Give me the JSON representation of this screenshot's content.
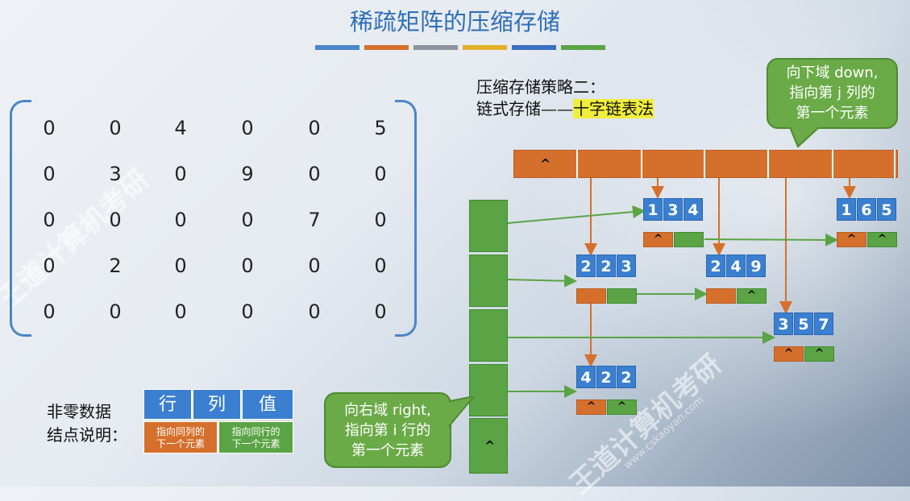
{
  "title": "稀疏矩阵的压缩存储",
  "color_bars": [
    "#4a86c8",
    "#d5702c",
    "#8c959e",
    "#e3b129",
    "#3a6fc0",
    "#5aa445"
  ],
  "matrix": {
    "rows": [
      [
        "0",
        "0",
        "4",
        "0",
        "0",
        "5"
      ],
      [
        "0",
        "3",
        "0",
        "9",
        "0",
        "0"
      ],
      [
        "0",
        "0",
        "0",
        "0",
        "7",
        "0"
      ],
      [
        "0",
        "2",
        "0",
        "0",
        "0",
        "0"
      ],
      [
        "0",
        "0",
        "0",
        "0",
        "0",
        "0"
      ]
    ]
  },
  "strategy": {
    "line1": "压缩存储策略二：",
    "line2_prefix": "链式存储——",
    "line2_highlight": "十字链表法"
  },
  "callout_down": {
    "line1": "向下域 down,",
    "line2": "指向第 j 列的",
    "line3": "第一个元素"
  },
  "callout_right": {
    "line1": "向右域 right,",
    "line2": "指向第 i 行的",
    "line3": "第一个元素"
  },
  "null_symbol": "^",
  "nodes": [
    {
      "id": "n134",
      "row": "1",
      "col": "3",
      "val": "4",
      "down": "^",
      "right": ""
    },
    {
      "id": "n165",
      "row": "1",
      "col": "6",
      "val": "5",
      "down": "^",
      "right": "^"
    },
    {
      "id": "n223",
      "row": "2",
      "col": "2",
      "val": "3",
      "down": "",
      "right": ""
    },
    {
      "id": "n249",
      "row": "2",
      "col": "4",
      "val": "9",
      "down": "",
      "right": "^"
    },
    {
      "id": "n357",
      "row": "3",
      "col": "5",
      "val": "7",
      "down": "^",
      "right": "^"
    },
    {
      "id": "n422",
      "row": "4",
      "col": "2",
      "val": "2",
      "down": "^",
      "right": "^"
    }
  ],
  "legend": {
    "label_line1": "非零数据",
    "label_line2": "结点说明：",
    "headers": [
      "行",
      "列",
      "值"
    ],
    "down_desc_line1": "指向同列的",
    "down_desc_line2": "下一个元素",
    "right_desc_line1": "指向同行的",
    "right_desc_line2": "下一个元素"
  },
  "watermark": {
    "brand": "王道计算机考研",
    "site": "www.cskaoyan.com"
  }
}
